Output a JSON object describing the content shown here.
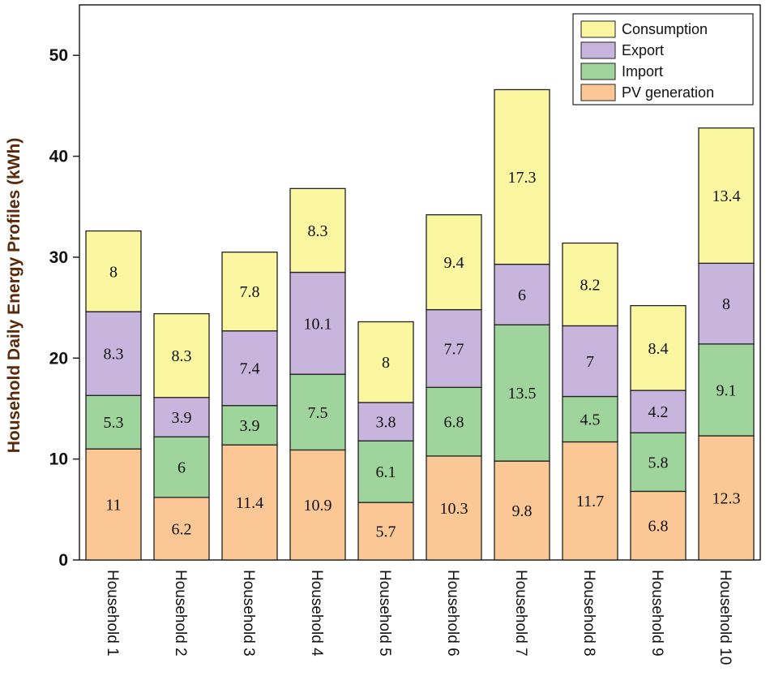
{
  "chart_data": {
    "type": "bar",
    "stacked": true,
    "title": "",
    "xlabel": "",
    "ylabel": "Household Daily Energy Profiles (kWh)",
    "ylim": [
      0,
      55
    ],
    "yticks": [
      0,
      10,
      20,
      30,
      40,
      50
    ],
    "categories": [
      "Household 1",
      "Household 2",
      "Household 3",
      "Household 4",
      "Household 5",
      "Household 6",
      "Household 7",
      "Household 8",
      "Household 9",
      "Household 10"
    ],
    "series": [
      {
        "name": "PV generation",
        "color": "#fbc895",
        "values": [
          11,
          6.2,
          11.4,
          10.9,
          5.7,
          10.3,
          9.8,
          11.7,
          6.8,
          12.3
        ]
      },
      {
        "name": "Import",
        "color": "#9fd49c",
        "values": [
          5.3,
          6,
          3.9,
          7.5,
          6.1,
          6.8,
          13.5,
          4.5,
          5.8,
          9.1
        ]
      },
      {
        "name": "Export",
        "color": "#c8b5de",
        "values": [
          8.3,
          3.9,
          7.4,
          10.1,
          3.8,
          7.7,
          6,
          7,
          4.2,
          8
        ]
      },
      {
        "name": "Consumption",
        "color": "#fbf6a0",
        "values": [
          8,
          8.3,
          7.8,
          8.3,
          8,
          9.4,
          17.3,
          8.2,
          8.4,
          13.4
        ]
      }
    ],
    "legend_order": [
      "Consumption",
      "Export",
      "Import",
      "PV generation"
    ],
    "legend_position": "top-right"
  }
}
